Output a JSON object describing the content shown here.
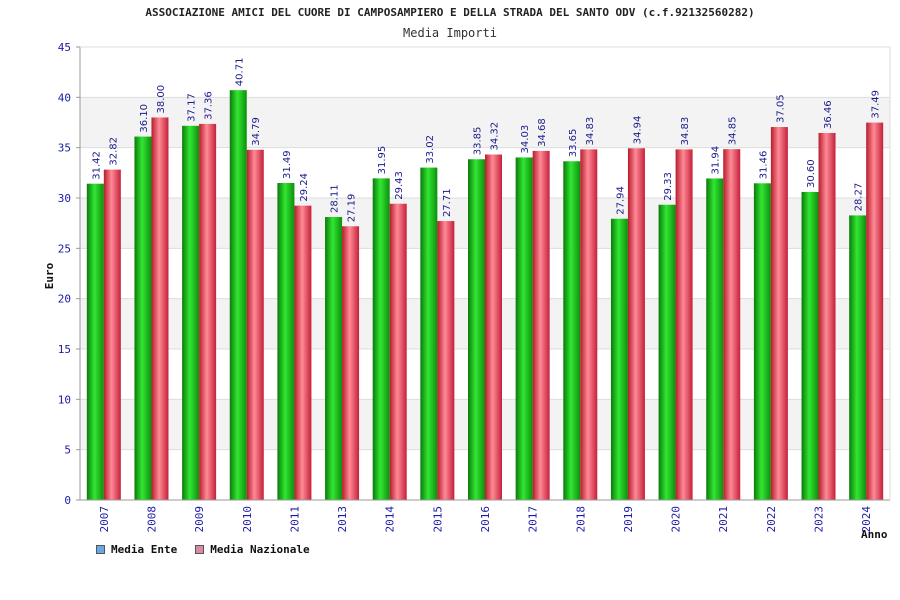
{
  "chart_data": {
    "type": "bar",
    "title": "ASSOCIAZIONE AMICI DEL CUORE DI CAMPOSAMPIERO E DELLA STRADA DEL SANTO ODV (c.f.92132560282)",
    "subtitle": "Media Importi",
    "xlabel": "Anno",
    "ylabel": "Euro",
    "ylim": [
      0,
      45
    ],
    "yticks": [
      "0",
      "5",
      "10",
      "15",
      "20",
      "25",
      "30",
      "35",
      "40",
      "45"
    ],
    "grid": true,
    "legend_position": "bottom-left",
    "categories": [
      "2007",
      "2008",
      "2009",
      "2010",
      "2011",
      "2013",
      "2014",
      "2015",
      "2016",
      "2017",
      "2018",
      "2019",
      "2020",
      "2021",
      "2022",
      "2023",
      "2024"
    ],
    "series": [
      {
        "name": "Media Ente",
        "color": "#1fb21f",
        "legend_color": "#6aa6ea",
        "values": [
          31.42,
          36.1,
          37.17,
          40.71,
          31.49,
          28.11,
          31.95,
          33.02,
          33.85,
          34.03,
          33.65,
          27.94,
          29.33,
          31.94,
          31.46,
          30.6,
          28.27
        ],
        "labels": [
          "31.42",
          "36.10",
          "37.17",
          "40.71",
          "31.49",
          "28.11",
          "31.95",
          "33.02",
          "33.85",
          "34.03",
          "33.65",
          "27.94",
          "29.33",
          "31.94",
          "31.46",
          "30.60",
          "28.27"
        ]
      },
      {
        "name": "Media Nazionale",
        "color": "#e8455a",
        "legend_color": "#d98aa8",
        "values": [
          32.82,
          38.0,
          37.36,
          34.79,
          29.24,
          27.19,
          29.43,
          27.71,
          34.32,
          34.68,
          34.83,
          34.94,
          34.83,
          34.85,
          37.05,
          36.46,
          37.49
        ],
        "labels": [
          "32.82",
          "38.00",
          "37.36",
          "34.79",
          "29.24",
          "27.19",
          "29.43",
          "27.71",
          "34.32",
          "34.68",
          "34.83",
          "34.94",
          "34.83",
          "34.85",
          "37.05",
          "36.46",
          "37.49"
        ]
      }
    ]
  }
}
